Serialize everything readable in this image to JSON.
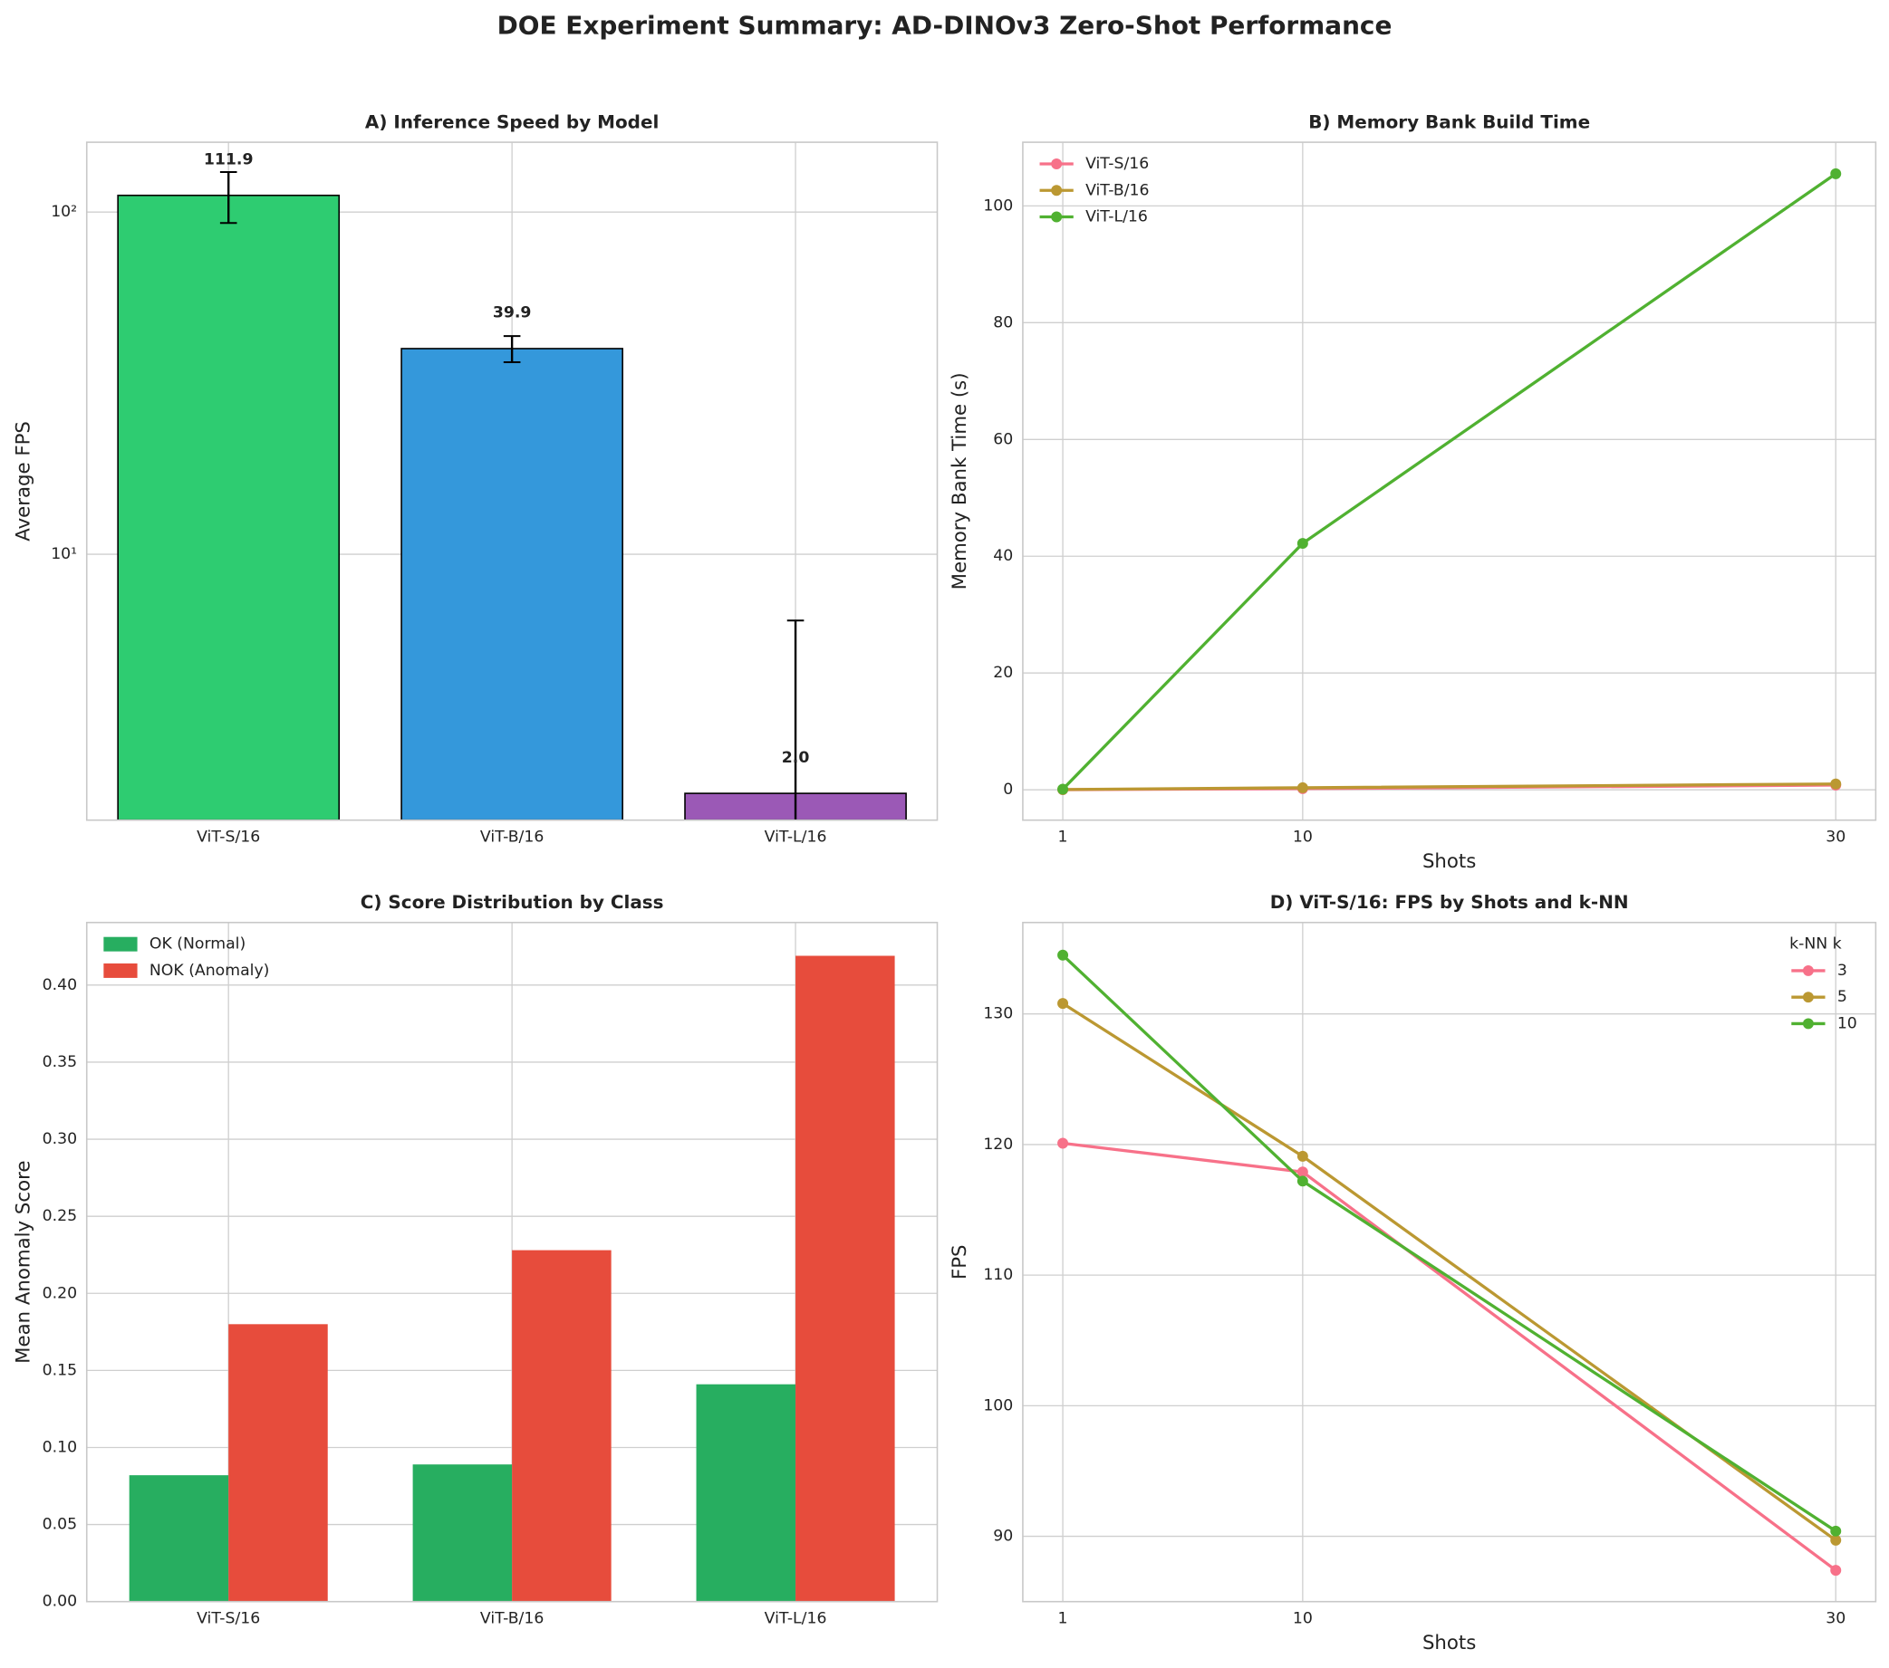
{
  "title": "DOE Experiment Summary: AD-DINOv3 Zero-Shot Performance",
  "chart_data": [
    {
      "type": "bar",
      "title": "A) Inference Speed by Model",
      "ylabel": "Average FPS",
      "categories": [
        "ViT-S/16",
        "ViT-B/16",
        "ViT-L/16"
      ],
      "values": [
        111.9,
        39.9,
        2.0
      ],
      "value_labels": [
        "111.9",
        "39.9",
        "2.0"
      ],
      "errors": [
        19,
        3.5,
        4.4
      ],
      "colors": [
        "#2ecc71",
        "#3498db",
        "#9b59b6"
      ],
      "log_scale": true,
      "ylim": [
        1.67,
        160
      ],
      "yticks": [
        {
          "value": 10,
          "label": "10¹"
        },
        {
          "value": 100,
          "label": "10²"
        }
      ],
      "grid": true
    },
    {
      "type": "line",
      "title": "B) Memory Bank Build Time",
      "xlabel": "Shots",
      "ylabel": "Memory Bank Time (s)",
      "x": [
        1,
        10,
        30
      ],
      "series": [
        {
          "name": "ViT-S/16",
          "color": "#f77189",
          "values": [
            0.02,
            0.2,
            0.8
          ]
        },
        {
          "name": "ViT-B/16",
          "color": "#bb9832",
          "values": [
            0.05,
            0.35,
            1.0
          ]
        },
        {
          "name": "ViT-L/16",
          "color": "#50b131",
          "values": [
            0.1,
            42.2,
            105.5
          ]
        }
      ],
      "xlim": [
        -0.5,
        31.5
      ],
      "xticks": [
        1,
        10,
        30
      ],
      "ylim": [
        -5.2,
        110.9
      ],
      "yticks": [
        0,
        20,
        40,
        60,
        80,
        100
      ],
      "grid": true,
      "legend": "upper left"
    },
    {
      "type": "bar",
      "title": "C) Score Distribution by Class",
      "ylabel": "Mean Anomaly Score",
      "categories": [
        "ViT-S/16",
        "ViT-B/16",
        "ViT-L/16"
      ],
      "series": [
        {
          "name": "OK (Normal)",
          "color": "#27ae60",
          "values": [
            0.082,
            0.089,
            0.141
          ]
        },
        {
          "name": "NOK (Anomaly)",
          "color": "#e74c3c",
          "values": [
            0.18,
            0.228,
            0.419
          ]
        }
      ],
      "ylim": [
        0,
        0.4406
      ],
      "yticks": [
        {
          "value": 0,
          "label": "0.00"
        },
        {
          "value": 0.05,
          "label": "0.05"
        },
        {
          "value": 0.1,
          "label": "0.10"
        },
        {
          "value": 0.15,
          "label": "0.15"
        },
        {
          "value": 0.2,
          "label": "0.20"
        },
        {
          "value": 0.25,
          "label": "0.25"
        },
        {
          "value": 0.3,
          "label": "0.30"
        },
        {
          "value": 0.35,
          "label": "0.35"
        },
        {
          "value": 0.4,
          "label": "0.40"
        }
      ],
      "grid": true,
      "legend": "upper left"
    },
    {
      "type": "line",
      "title": "D) ViT-S/16: FPS by Shots and k-NN",
      "xlabel": "Shots",
      "ylabel": "FPS",
      "legend_title": "k-NN k",
      "x": [
        1,
        10,
        30
      ],
      "series": [
        {
          "name": "3",
          "color": "#f77189",
          "values": [
            120.1,
            117.9,
            87.4
          ]
        },
        {
          "name": "5",
          "color": "#bb9832",
          "values": [
            130.8,
            119.1,
            89.7
          ]
        },
        {
          "name": "10",
          "color": "#50b131",
          "values": [
            134.5,
            117.2,
            90.4
          ]
        }
      ],
      "xlim": [
        -0.5,
        31.5
      ],
      "xticks": [
        1,
        10,
        30
      ],
      "ylim": [
        85.0,
        137.0
      ],
      "yticks": [
        90,
        100,
        110,
        120,
        130
      ],
      "grid": true,
      "legend": "upper right"
    }
  ]
}
